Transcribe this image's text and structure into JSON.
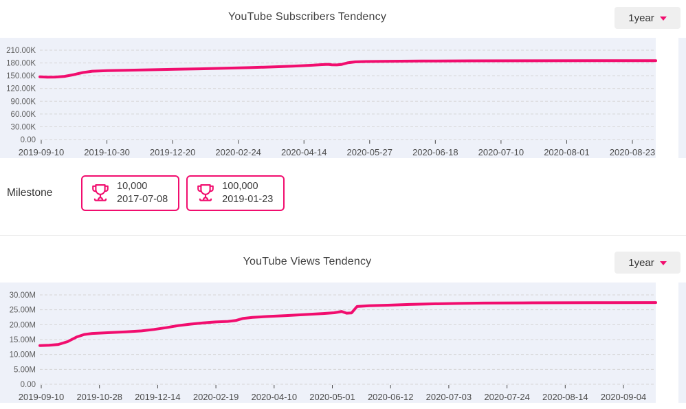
{
  "colors": {
    "accent_pink": "#f10d6e",
    "panel_background": "#eef1f9",
    "gridline": "#d5d5d5",
    "title_text": "#414141",
    "axis_text": "#4c4c4c",
    "dropdown_background": "#efefef"
  },
  "subscribers_section": {
    "title": "YouTube Subscribers Tendency",
    "range_selector": {
      "label": "1year",
      "caret_icon": "caret-down-icon"
    }
  },
  "milestone_section": {
    "label": "Milestone",
    "badges": [
      {
        "icon": "trophy-icon",
        "value": "10,000",
        "date": "2017-07-08"
      },
      {
        "icon": "trophy-icon",
        "value": "100,000",
        "date": "2019-01-23"
      }
    ]
  },
  "views_section": {
    "title": "YouTube Views Tendency",
    "range_selector": {
      "label": "1year",
      "caret_icon": "caret-down-icon"
    }
  },
  "chart_data": [
    {
      "type": "line",
      "title": "YouTube Subscribers Tendency",
      "legend": false,
      "grid": true,
      "line_color": "#f10d6e",
      "ylim": [
        0,
        210
      ],
      "y_unit": "K (thousands of subscribers)",
      "y_tick_labels": [
        "210.00K",
        "180.00K",
        "150.00K",
        "120.00K",
        "90.00K",
        "60.00K",
        "30.00K",
        "0.00"
      ],
      "x_tick_labels": [
        "2019-09-10",
        "2019-10-30",
        "2019-12-20",
        "2020-02-24",
        "2020-04-14",
        "2020-05-27",
        "2020-06-18",
        "2020-07-10",
        "2020-08-01",
        "2020-08-23"
      ],
      "series": [
        {
          "name": "Subscribers",
          "points": [
            [
              0.0,
              147.5
            ],
            [
              0.012,
              146.6
            ],
            [
              0.025,
              146.9
            ],
            [
              0.04,
              148.5
            ],
            [
              0.055,
              152.5
            ],
            [
              0.07,
              157.5
            ],
            [
              0.085,
              160.5
            ],
            [
              0.11,
              161.8
            ],
            [
              0.14,
              162.8
            ],
            [
              0.18,
              164.0
            ],
            [
              0.22,
              165.2
            ],
            [
              0.26,
              166.3
            ],
            [
              0.3,
              167.5
            ],
            [
              0.34,
              169.0
            ],
            [
              0.38,
              170.8
            ],
            [
              0.41,
              172.3
            ],
            [
              0.44,
              174.5
            ],
            [
              0.458,
              176.0
            ],
            [
              0.468,
              176.8
            ],
            [
              0.474,
              175.8
            ],
            [
              0.482,
              175.4
            ],
            [
              0.49,
              176.5
            ],
            [
              0.5,
              180.5
            ],
            [
              0.512,
              182.5
            ],
            [
              0.53,
              183.4
            ],
            [
              0.57,
              184.0
            ],
            [
              0.62,
              184.5
            ],
            [
              0.7,
              184.9
            ],
            [
              0.8,
              185.1
            ],
            [
              0.9,
              185.3
            ],
            [
              1.0,
              185.5
            ]
          ]
        }
      ]
    },
    {
      "type": "line",
      "title": "YouTube Views Tendency",
      "legend": false,
      "grid": true,
      "line_color": "#f10d6e",
      "ylim": [
        0,
        30
      ],
      "y_unit": "M (millions of views)",
      "y_tick_labels": [
        "30.00M",
        "25.00M",
        "20.00M",
        "15.00M",
        "10.00M",
        "5.00M",
        "0.00"
      ],
      "x_tick_labels": [
        "2019-09-10",
        "2019-10-28",
        "2019-12-14",
        "2020-02-19",
        "2020-04-10",
        "2020-05-01",
        "2020-06-12",
        "2020-07-03",
        "2020-07-24",
        "2020-08-14",
        "2020-09-04"
      ],
      "series": [
        {
          "name": "Views",
          "points": [
            [
              0.0,
              13.0
            ],
            [
              0.015,
              13.1
            ],
            [
              0.03,
              13.35
            ],
            [
              0.045,
              14.3
            ],
            [
              0.06,
              15.9
            ],
            [
              0.072,
              16.7
            ],
            [
              0.085,
              17.05
            ],
            [
              0.11,
              17.3
            ],
            [
              0.14,
              17.6
            ],
            [
              0.165,
              17.9
            ],
            [
              0.185,
              18.4
            ],
            [
              0.205,
              19.0
            ],
            [
              0.225,
              19.7
            ],
            [
              0.245,
              20.2
            ],
            [
              0.265,
              20.6
            ],
            [
              0.285,
              20.9
            ],
            [
              0.305,
              21.1
            ],
            [
              0.318,
              21.4
            ],
            [
              0.33,
              22.1
            ],
            [
              0.345,
              22.45
            ],
            [
              0.37,
              22.75
            ],
            [
              0.4,
              23.05
            ],
            [
              0.43,
              23.4
            ],
            [
              0.46,
              23.75
            ],
            [
              0.478,
              24.0
            ],
            [
              0.49,
              24.45
            ],
            [
              0.498,
              23.85
            ],
            [
              0.506,
              23.95
            ],
            [
              0.515,
              26.1
            ],
            [
              0.535,
              26.35
            ],
            [
              0.565,
              26.55
            ],
            [
              0.6,
              26.8
            ],
            [
              0.64,
              27.0
            ],
            [
              0.68,
              27.15
            ],
            [
              0.72,
              27.25
            ],
            [
              0.8,
              27.35
            ],
            [
              0.9,
              27.4
            ],
            [
              1.0,
              27.45
            ]
          ]
        }
      ]
    }
  ]
}
